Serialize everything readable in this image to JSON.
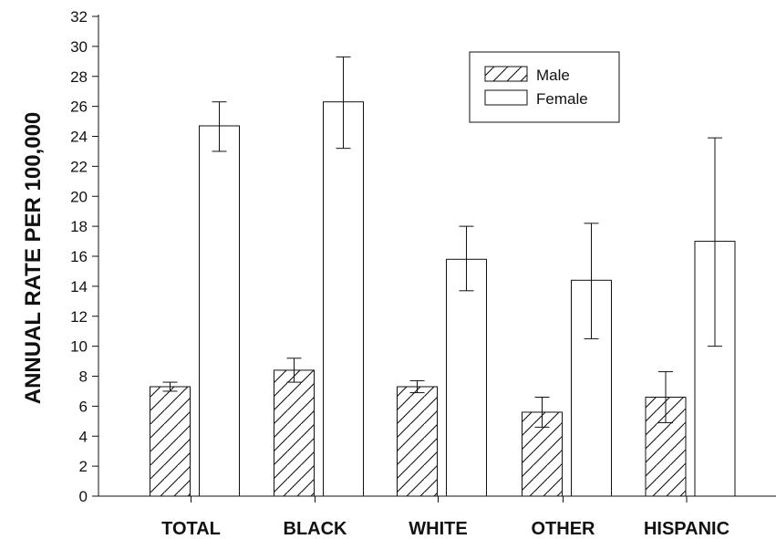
{
  "chart_data": {
    "type": "bar",
    "title": "",
    "xlabel": "",
    "ylabel": "ANNUAL RATE PER 100,000",
    "ylim": [
      0,
      32
    ],
    "yticks": [
      0,
      2,
      4,
      6,
      8,
      10,
      12,
      14,
      16,
      18,
      20,
      22,
      24,
      26,
      28,
      30,
      32
    ],
    "categories": [
      "TOTAL",
      "BLACK",
      "WHITE",
      "OTHER",
      "HISPANIC"
    ],
    "series": [
      {
        "name": "Male",
        "pattern": "diagonal-hatch",
        "values": [
          7.3,
          8.4,
          7.3,
          5.6,
          6.6
        ],
        "err_low": [
          7.0,
          7.6,
          6.9,
          4.6,
          4.9
        ],
        "err_high": [
          7.6,
          9.2,
          7.7,
          6.6,
          8.3
        ]
      },
      {
        "name": "Female",
        "pattern": "solid-white",
        "values": [
          24.7,
          26.3,
          15.8,
          14.4,
          17.0
        ],
        "err_low": [
          23.0,
          23.2,
          13.7,
          10.5,
          10.0
        ],
        "err_high": [
          26.3,
          29.3,
          18.0,
          18.2,
          23.9
        ]
      }
    ],
    "legend": {
      "position": "top-right",
      "items": [
        "Male",
        "Female"
      ]
    },
    "grid": false,
    "error_bars": true,
    "colors": {
      "bar_stroke": "#111111",
      "bar_fill": "#ffffff",
      "axis": "#111111",
      "text": "#111111"
    }
  }
}
